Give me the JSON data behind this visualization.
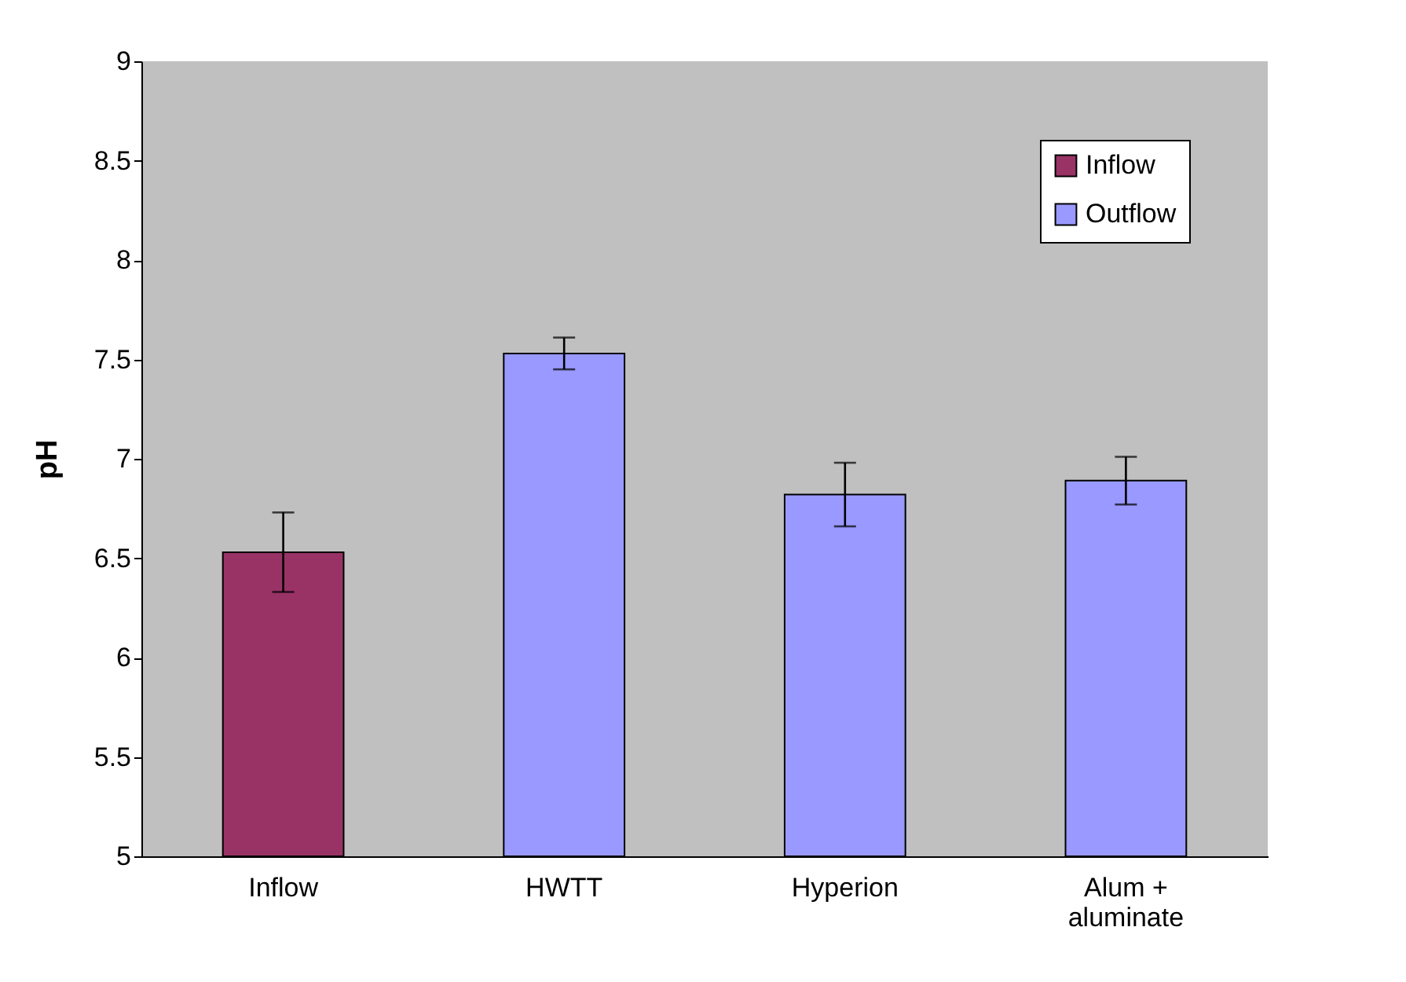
{
  "chart_data": {
    "type": "bar",
    "ylabel": "pH",
    "categories": [
      "Inflow",
      "HWTT",
      "Hyperion",
      "Alum + aluminate"
    ],
    "series": [
      {
        "name": "Inflow",
        "color": "#993366",
        "values": [
          6.53,
          null,
          null,
          null
        ],
        "errors": [
          0.2,
          null,
          null,
          null
        ]
      },
      {
        "name": "Outflow",
        "color": "#9999ff",
        "values": [
          null,
          7.53,
          6.82,
          6.89
        ],
        "errors": [
          null,
          0.08,
          0.16,
          0.12
        ]
      }
    ],
    "ylim": [
      5,
      9
    ],
    "yticks": [
      5,
      5.5,
      6,
      6.5,
      7,
      7.5,
      8,
      8.5,
      9
    ],
    "grid": false,
    "legend": "top right"
  }
}
